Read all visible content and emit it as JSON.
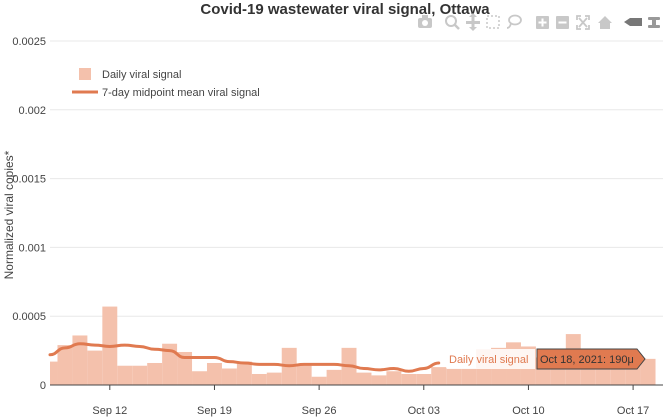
{
  "chart_data": {
    "type": "bar",
    "title": "Covid-19 wastewater viral signal, Ottawa",
    "ylabel": "Normalized viral copies*",
    "xlabel": "",
    "x_start": "2021-09-08",
    "x_end": "2021-10-19",
    "ylim": [
      0,
      0.0025
    ],
    "y_ticks": [
      0,
      0.0005,
      0.001,
      0.0015,
      0.002,
      0.0025
    ],
    "y_tick_labels": [
      "0",
      "0.0005",
      "0.001",
      "0.0015",
      "0.002",
      "0.0025"
    ],
    "x_ticks": [
      "2021-09-12",
      "2021-09-19",
      "2021-09-26",
      "2021-10-03",
      "2021-10-10",
      "2021-10-17"
    ],
    "x_tick_labels": [
      "Sep 12",
      "Sep 19",
      "Sep 26",
      "Oct 03",
      "Oct 10",
      "Oct 17"
    ],
    "grid": true,
    "legend_position": "top-left",
    "series": [
      {
        "name": "Daily viral signal",
        "kind": "bar",
        "color": "#f4c1ac",
        "dates": [
          "2021-09-08",
          "2021-09-09",
          "2021-09-10",
          "2021-09-11",
          "2021-09-12",
          "2021-09-13",
          "2021-09-14",
          "2021-09-15",
          "2021-09-16",
          "2021-09-17",
          "2021-09-18",
          "2021-09-19",
          "2021-09-20",
          "2021-09-21",
          "2021-09-22",
          "2021-09-23",
          "2021-09-24",
          "2021-09-25",
          "2021-09-26",
          "2021-09-27",
          "2021-09-28",
          "2021-09-29",
          "2021-09-30",
          "2021-10-01",
          "2021-10-02",
          "2021-10-03",
          "2021-10-04",
          "2021-10-05",
          "2021-10-06",
          "2021-10-07",
          "2021-10-08",
          "2021-10-09",
          "2021-10-10",
          "2021-10-11",
          "2021-10-12",
          "2021-10-13",
          "2021-10-14",
          "2021-10-15",
          "2021-10-16",
          "2021-10-17",
          "2021-10-18"
        ],
        "values": [
          0.00017,
          0.00029,
          0.00036,
          0.00025,
          0.00057,
          0.00014,
          0.00014,
          0.00016,
          0.0003,
          0.00024,
          0.0001,
          0.00016,
          0.00012,
          0.00017,
          8e-05,
          9e-05,
          0.00027,
          0.00014,
          6e-05,
          0.00011,
          0.00027,
          9e-05,
          7e-05,
          0.0001,
          8e-05,
          8e-05,
          0.00013,
          0.00012,
          0.00012,
          0.00026,
          0.00027,
          0.00031,
          0.00028,
          0.0002,
          0.00019,
          0.00037,
          0.00019,
          0.00019,
          0.00019,
          0.00019,
          0.00019
        ]
      },
      {
        "name": "7-day midpoint mean viral signal",
        "kind": "line",
        "color": "#e07a50",
        "dates": [
          "2021-09-08",
          "2021-09-09",
          "2021-09-10",
          "2021-09-11",
          "2021-09-12",
          "2021-09-13",
          "2021-09-14",
          "2021-09-15",
          "2021-09-16",
          "2021-09-17",
          "2021-09-18",
          "2021-09-19",
          "2021-09-20",
          "2021-09-21",
          "2021-09-22",
          "2021-09-23",
          "2021-09-24",
          "2021-09-25",
          "2021-09-26",
          "2021-09-27",
          "2021-09-28",
          "2021-09-29",
          "2021-09-30",
          "2021-10-01",
          "2021-10-02",
          "2021-10-03",
          "2021-10-04"
        ],
        "values": [
          0.00022,
          0.00027,
          0.0003,
          0.00029,
          0.00028,
          0.00029,
          0.00028,
          0.00026,
          0.00025,
          0.0002,
          0.0002,
          0.0002,
          0.00017,
          0.00016,
          0.00015,
          0.00015,
          0.00014,
          0.00015,
          0.00015,
          0.00015,
          0.00014,
          0.00012,
          0.00011,
          0.00012,
          0.0001,
          0.00012,
          0.00016
        ]
      }
    ],
    "hover": {
      "series_label": "Daily viral signal",
      "value_label": "Oct 18, 2021: 190μ",
      "date": "2021-10-18",
      "value": 0.00019
    }
  },
  "modebar": {
    "buttons": [
      "camera-icon",
      "zoom-icon",
      "pan-icon",
      "box-select-icon",
      "lasso-select-icon",
      "zoom-in-icon",
      "zoom-out-icon",
      "autoscale-icon",
      "home-icon",
      "spike-lines-icon",
      "hover-closest-icon"
    ]
  }
}
